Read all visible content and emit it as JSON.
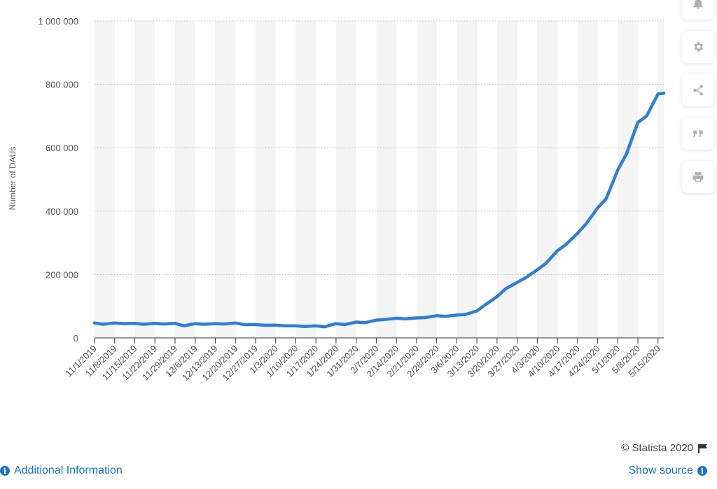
{
  "chart_data": {
    "type": "line",
    "title": "",
    "xlabel": "",
    "ylabel": "Number of DAUs",
    "ylim": [
      0,
      1000000
    ],
    "yticks": [
      0,
      200000,
      400000,
      600000,
      800000,
      1000000
    ],
    "ytick_labels": [
      "0",
      "200 000",
      "400 000",
      "600 000",
      "800 000",
      "1 000 000"
    ],
    "grid": true,
    "x_tick_labels": [
      "11/1/2019",
      "11/8/2019",
      "11/15/2019",
      "11/22/2019",
      "11/29/2019",
      "12/6/2019",
      "12/13/2019",
      "12/20/2019",
      "12/27/2019",
      "1/3/2020",
      "1/10/2020",
      "1/17/2020",
      "1/24/2020",
      "1/31/2020",
      "2/7/2020",
      "2/14/2020",
      "2/21/2020",
      "2/28/2020",
      "3/6/2020",
      "3/13/2020",
      "3/20/2020",
      "3/27/2020",
      "4/3/2020",
      "4/10/2020",
      "4/17/2020",
      "4/24/2020",
      "5/1/2020",
      "5/8/2020",
      "5/15/2020"
    ],
    "series": [
      {
        "color": "#2f7ed8",
        "x": [
          "11/1/2019",
          "11/4/2019",
          "11/8/2019",
          "11/11/2019",
          "11/15/2019",
          "11/18/2019",
          "11/22/2019",
          "11/25/2019",
          "11/29/2019",
          "12/2/2019",
          "12/6/2019",
          "12/9/2019",
          "12/13/2019",
          "12/16/2019",
          "12/20/2019",
          "12/23/2019",
          "12/27/2019",
          "12/30/2019",
          "1/3/2020",
          "1/6/2020",
          "1/10/2020",
          "1/13/2020",
          "1/17/2020",
          "1/20/2020",
          "1/24/2020",
          "1/27/2020",
          "1/31/2020",
          "2/3/2020",
          "2/7/2020",
          "2/10/2020",
          "2/14/2020",
          "2/17/2020",
          "2/21/2020",
          "2/24/2020",
          "2/28/2020",
          "3/2/2020",
          "3/6/2020",
          "3/9/2020",
          "3/13/2020",
          "3/16/2020",
          "3/20/2020",
          "3/23/2020",
          "3/27/2020",
          "3/30/2020",
          "4/3/2020",
          "4/6/2020",
          "4/10/2020",
          "4/13/2020",
          "4/17/2020",
          "4/20/2020",
          "4/24/2020",
          "4/27/2020",
          "5/1/2020",
          "5/4/2020",
          "5/8/2020",
          "5/11/2020",
          "5/15/2020",
          "5/17/2020"
        ],
        "values": [
          47000,
          43000,
          47000,
          45000,
          46000,
          43000,
          46000,
          44000,
          46000,
          38000,
          45000,
          43000,
          45000,
          44000,
          47000,
          42000,
          42000,
          40000,
          40000,
          38000,
          38000,
          36000,
          38000,
          35000,
          45000,
          42000,
          50000,
          48000,
          56000,
          58000,
          62000,
          60000,
          63000,
          64000,
          70000,
          68000,
          72000,
          74000,
          85000,
          105000,
          130000,
          155000,
          175000,
          190000,
          215000,
          235000,
          275000,
          295000,
          330000,
          360000,
          410000,
          440000,
          530000,
          580000,
          680000,
          700000,
          770000,
          772000
        ]
      }
    ]
  },
  "toolbar": {
    "icons": [
      "bell-icon",
      "gear-icon",
      "share-icon",
      "quote-icon",
      "print-icon"
    ]
  },
  "footer": {
    "copyright": "© Statista 2020",
    "additional_info": "Additional Information",
    "show_source": "Show source"
  }
}
